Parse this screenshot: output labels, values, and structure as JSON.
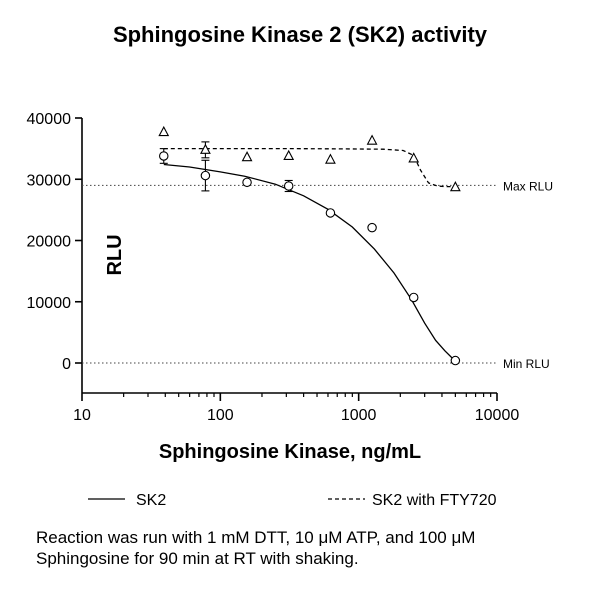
{
  "chart_data": {
    "type": "scatter",
    "title": "Sphingosine Kinase 2 (SK2) activity",
    "xlabel": "Sphingosine Kinase, ng/mL",
    "ylabel": "RLU",
    "x_scale": "log",
    "xlim": [
      10,
      10000
    ],
    "ylim": [
      0,
      40000
    ],
    "x_ticks": [
      10,
      100,
      1000,
      10000
    ],
    "x_tick_labels": [
      "10",
      "100",
      "1000",
      "10000"
    ],
    "y_ticks": [
      0,
      10000,
      20000,
      30000,
      40000
    ],
    "y_tick_labels": [
      "0",
      "10000",
      "20000",
      "30000",
      "40000"
    ],
    "grid": false,
    "legend_position": "bottom",
    "series": [
      {
        "name": "SK2",
        "marker": "circle",
        "line_style": "solid",
        "x": [
          39,
          78,
          156,
          312,
          625,
          1250,
          2500,
          5000
        ],
        "y": [
          33800,
          30600,
          29500,
          28900,
          24500,
          22100,
          10700,
          400
        ],
        "error": [
          1200,
          2500,
          0,
          900,
          0,
          0,
          0,
          0
        ],
        "fit_curve": {
          "x": [
            39,
            60,
            100,
            150,
            250,
            400,
            600,
            900,
            1300,
            1800,
            2400,
            3000,
            3600,
            4200,
            4800,
            5000
          ],
          "y": [
            32400,
            32000,
            31200,
            30500,
            29200,
            27300,
            25100,
            22200,
            18600,
            14700,
            10400,
            6500,
            3700,
            2000,
            700,
            400
          ]
        }
      },
      {
        "name": "SK2 with FTY720",
        "marker": "triangle",
        "line_style": "dashed",
        "x": [
          39,
          78,
          156,
          312,
          625,
          1250,
          2500,
          5000
        ],
        "y": [
          37700,
          34800,
          33600,
          33800,
          33200,
          36300,
          33400,
          28700
        ],
        "error": [
          0,
          1300,
          0,
          0,
          0,
          0,
          0,
          0
        ],
        "fit_curve": {
          "x": [
            39,
            100,
            300,
            800,
            1500,
            2100,
            2500,
            2800,
            3200,
            3700,
            4200,
            5000
          ],
          "y": [
            35000,
            35000,
            35000,
            34950,
            34900,
            34700,
            33900,
            31500,
            29400,
            28900,
            28800,
            28800
          ]
        }
      }
    ],
    "reference_lines": [
      {
        "label": "Max RLU",
        "y": 29000
      },
      {
        "label": "Min RLU",
        "y": 0
      }
    ]
  },
  "caption": {
    "line1": "Reaction was run with 1 mM  DTT, 10 μM  ATP, and 100 μM",
    "line2": "Sphingosine for 90 min at RT with shaking."
  }
}
